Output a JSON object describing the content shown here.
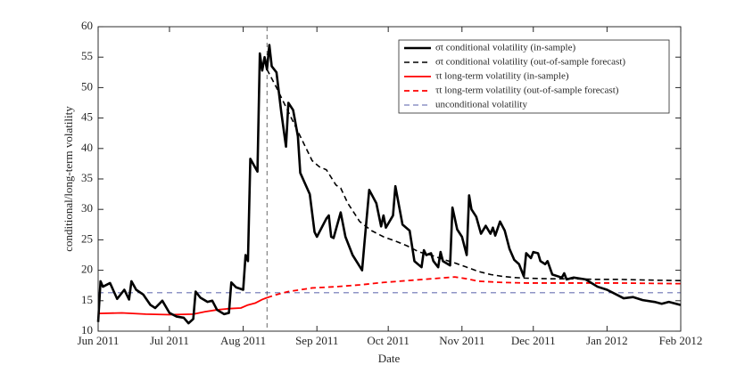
{
  "chart_data": {
    "type": "line",
    "xlabel": "Date",
    "ylabel": "conditional/long-term volatility",
    "xlim": [
      0,
      245
    ],
    "ylim": [
      10,
      60
    ],
    "xticks": [
      {
        "value": 0,
        "label": "Jun 2011"
      },
      {
        "value": 30,
        "label": "Jul 2011"
      },
      {
        "value": 61,
        "label": "Aug 2011"
      },
      {
        "value": 92,
        "label": "Sep 2011"
      },
      {
        "value": 122,
        "label": "Oct 2011"
      },
      {
        "value": 153,
        "label": "Nov 2011"
      },
      {
        "value": 183,
        "label": "Dec 2011"
      },
      {
        "value": 214,
        "label": "Jan 2012"
      },
      {
        "value": 245,
        "label": "Feb 2012"
      }
    ],
    "yticks": [
      10,
      15,
      20,
      25,
      30,
      35,
      40,
      45,
      50,
      55,
      60
    ],
    "vlines": [
      71
    ],
    "series": [
      {
        "name": "σt conditional volatility (in-sample)",
        "color": "#000000",
        "width": 2.6,
        "dash": false,
        "x": [
          0,
          1,
          2,
          5,
          8,
          11,
          13,
          14,
          16,
          19,
          22,
          24,
          27,
          30,
          33,
          36,
          38,
          40,
          41,
          43,
          46,
          48,
          50,
          53,
          55,
          56,
          58,
          61,
          62,
          63,
          64,
          67,
          68,
          69,
          70,
          71,
          72,
          73,
          75,
          77,
          79,
          80,
          82,
          84,
          85,
          89,
          91,
          92,
          96,
          97,
          98,
          99,
          102,
          104,
          107,
          111,
          112,
          114,
          117,
          119,
          120,
          121,
          124,
          125,
          128,
          131,
          133,
          136,
          137,
          138,
          140,
          141,
          143,
          144,
          145,
          148,
          149,
          151,
          153,
          155,
          156,
          157,
          159,
          161,
          163,
          165,
          166,
          167,
          169,
          171,
          173,
          175,
          177,
          179,
          180,
          182,
          183,
          185,
          186,
          188,
          189,
          191,
          195,
          196,
          197,
          200,
          205,
          210,
          214,
          218,
          221,
          225,
          229,
          234,
          237,
          240,
          245
        ],
        "values": [
          11.5,
          18.2,
          17.3,
          17.9,
          15.3,
          16.8,
          15.2,
          18.2,
          16.8,
          16,
          14.3,
          13.8,
          15,
          13,
          12.4,
          12.2,
          11.3,
          12,
          16.5,
          15.5,
          14.8,
          15,
          13.5,
          12.8,
          13,
          18,
          17.2,
          16.8,
          22.5,
          21.5,
          38.3,
          36.2,
          55.6,
          52.8,
          55,
          53,
          57,
          53.5,
          52.5,
          46,
          40.3,
          47.5,
          46.3,
          42,
          36,
          32.5,
          26.3,
          25.5,
          28.5,
          29,
          25.5,
          25.3,
          29.5,
          25.5,
          22.5,
          20,
          24.5,
          33.2,
          31,
          27.2,
          29,
          27,
          29,
          33.8,
          27.5,
          26.5,
          21.5,
          20.5,
          23.3,
          22.5,
          22.8,
          21.5,
          20.5,
          23,
          21.5,
          20.8,
          30.3,
          26.7,
          25.5,
          22.5,
          32.3,
          30,
          28.8,
          26,
          27.3,
          26,
          27,
          25.7,
          28,
          26.5,
          23.5,
          21.7,
          21,
          19,
          22.8,
          22,
          23,
          22.8,
          21.5,
          21,
          21.5,
          19.3,
          18.8,
          19.5,
          18.5,
          18.8,
          18.5,
          17.3,
          16.8,
          16,
          15.4,
          15.6,
          15.1,
          14.8,
          14.5,
          14.8,
          14.3
        ]
      },
      {
        "name": "σt conditional volatility (out-of-sample forecast)",
        "color": "#000000",
        "width": 1.6,
        "dash": true,
        "x": [
          71,
          75,
          80,
          85,
          90,
          93,
          96,
          100,
          102,
          105,
          110,
          115,
          120,
          125,
          130,
          135,
          140,
          145,
          150,
          155,
          160,
          165,
          170,
          175,
          180,
          190,
          200,
          210,
          220,
          230,
          245
        ],
        "values": [
          53,
          50,
          46,
          42,
          38,
          37,
          36.5,
          34,
          33.5,
          31,
          28,
          26.5,
          25.5,
          24.8,
          24,
          23,
          22.5,
          21.8,
          21.2,
          20.5,
          19.8,
          19.3,
          19,
          18.8,
          18.7,
          18.6,
          18.6,
          18.5,
          18.5,
          18.4,
          18.3
        ]
      },
      {
        "name": "τt long-term volatility (in-sample)",
        "color": "#ff0000",
        "width": 1.8,
        "dash": false,
        "x": [
          0,
          10,
          20,
          30,
          40,
          45,
          50,
          55,
          60,
          63,
          66,
          69,
          71
        ],
        "values": [
          12.9,
          13,
          12.8,
          12.7,
          12.8,
          13.2,
          13.5,
          13.7,
          13.8,
          14.3,
          14.6,
          15.2,
          15.5
        ]
      },
      {
        "name": "τt long-term volatility (out-of-sample forecast)",
        "color": "#ff0000",
        "width": 1.8,
        "dash": true,
        "x": [
          71,
          75,
          80,
          85,
          90,
          100,
          110,
          120,
          130,
          140,
          150,
          155,
          160,
          170,
          180,
          200,
          220,
          245
        ],
        "values": [
          15.5,
          16,
          16.5,
          16.8,
          17.1,
          17.3,
          17.6,
          18,
          18.3,
          18.6,
          18.9,
          18.6,
          18.2,
          18,
          17.9,
          17.9,
          17.9,
          17.8
        ]
      },
      {
        "name": "unconditional volatility",
        "color": "#1f2a8c",
        "width": 0.8,
        "dash": true,
        "x": [
          0,
          245
        ],
        "values": [
          16.3,
          16.3
        ]
      }
    ]
  }
}
